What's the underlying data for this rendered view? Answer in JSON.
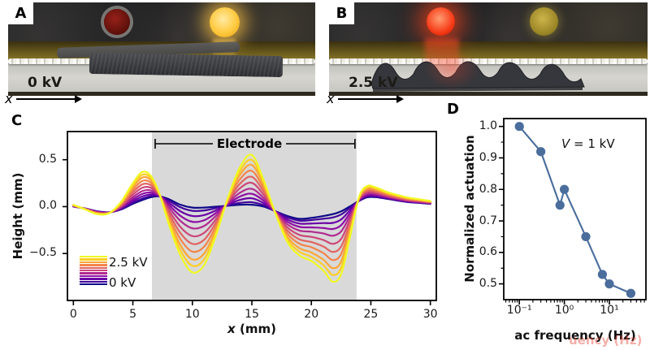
{
  "panels": {
    "a": {
      "label": "A",
      "voltage": "0 kV",
      "arrow_label": "x"
    },
    "b": {
      "label": "B",
      "voltage": "2.5 kV",
      "arrow_label": "x"
    },
    "c": {
      "label": "C"
    },
    "d": {
      "label": "D"
    }
  },
  "watermark": {
    "text": "uency (Hz)"
  },
  "chart_data": [
    {
      "panel": "C",
      "type": "line",
      "xlabel": "x (mm)",
      "xlabel_italic": "x",
      "xlabel_rest": " (mm)",
      "ylabel": "Height (mm)",
      "xlim": [
        -0.5,
        30.5
      ],
      "ylim": [
        -1.0,
        0.8
      ],
      "xticks": [
        0,
        5,
        10,
        15,
        20,
        25,
        30
      ],
      "yticks": [
        0.5,
        0.0,
        -0.5
      ],
      "ytick_labels": [
        "0.5",
        "0.0",
        "−0.5"
      ],
      "electrode_label": "Electrode",
      "electrode_region_mm": [
        6.6,
        23.8
      ],
      "legend": {
        "max_label": "2.5 kV",
        "min_label": "0 kV"
      },
      "voltage_step_kV": 0.25,
      "x": [
        0,
        1,
        2,
        3,
        4,
        5,
        5.8,
        6.5,
        7.2,
        8,
        9,
        10,
        11,
        12,
        13,
        14,
        15,
        16,
        17,
        18,
        19,
        20,
        21,
        21.8,
        22.5,
        23.2,
        24,
        24.7,
        25.5,
        26.5,
        28,
        29,
        30
      ],
      "profile_0kV": [
        0.0,
        -0.02,
        -0.05,
        -0.06,
        -0.03,
        0.03,
        0.07,
        0.1,
        0.11,
        0.08,
        0.02,
        -0.01,
        -0.01,
        0.0,
        0.01,
        0.02,
        0.02,
        0.0,
        -0.05,
        -0.1,
        -0.13,
        -0.12,
        -0.1,
        -0.08,
        -0.05,
        0.0,
        0.06,
        0.1,
        0.1,
        0.08,
        0.05,
        0.04,
        0.03
      ],
      "profile_2p5kV": [
        0.02,
        -0.03,
        -0.08,
        -0.07,
        0.05,
        0.25,
        0.37,
        0.33,
        0.15,
        -0.18,
        -0.52,
        -0.7,
        -0.62,
        -0.3,
        0.1,
        0.42,
        0.55,
        0.28,
        -0.08,
        -0.38,
        -0.52,
        -0.58,
        -0.68,
        -0.8,
        -0.72,
        -0.35,
        0.1,
        0.22,
        0.2,
        0.15,
        0.1,
        0.08,
        0.06
      ],
      "series": [
        {
          "voltage_kV": 0.0,
          "t": 0.0,
          "color": "#0d0887"
        },
        {
          "voltage_kV": 0.25,
          "t": 0.05,
          "color": "#41049d"
        },
        {
          "voltage_kV": 0.5,
          "t": 0.13,
          "color": "#6a00a8"
        },
        {
          "voltage_kV": 0.75,
          "t": 0.22,
          "color": "#8f0da4"
        },
        {
          "voltage_kV": 1.0,
          "t": 0.32,
          "color": "#b12a90"
        },
        {
          "voltage_kV": 1.25,
          "t": 0.44,
          "color": "#cc4778"
        },
        {
          "voltage_kV": 1.5,
          "t": 0.56,
          "color": "#e16462"
        },
        {
          "voltage_kV": 1.75,
          "t": 0.68,
          "color": "#f2844b"
        },
        {
          "voltage_kV": 2.0,
          "t": 0.8,
          "color": "#fca636"
        },
        {
          "voltage_kV": 2.25,
          "t": 0.9,
          "color": "#fcce25"
        },
        {
          "voltage_kV": 2.5,
          "t": 1.0,
          "color": "#f0f921"
        }
      ]
    },
    {
      "panel": "D",
      "type": "scatter-line",
      "xlabel": "ac frequency (Hz)",
      "ylabel": "Normalized actuation",
      "xscale": "log",
      "xlim": [
        0.045,
        65
      ],
      "ylim": [
        0.45,
        1.025
      ],
      "xticks": [
        0.1,
        1,
        10
      ],
      "xtick_labels": [
        "10⁻¹",
        "10⁰",
        "10¹"
      ],
      "yticks": [
        1.0,
        0.9,
        0.8,
        0.7,
        0.6,
        0.5
      ],
      "annotation": "V = 1 kV",
      "annotation_italic": "V",
      "annotation_rest": " = 1 kV",
      "color": "#4a6d9c",
      "x": [
        0.1,
        0.3,
        0.8,
        1,
        3,
        7,
        10,
        30
      ],
      "y": [
        1.0,
        0.92,
        0.75,
        0.8,
        0.65,
        0.53,
        0.5,
        0.47
      ]
    }
  ]
}
